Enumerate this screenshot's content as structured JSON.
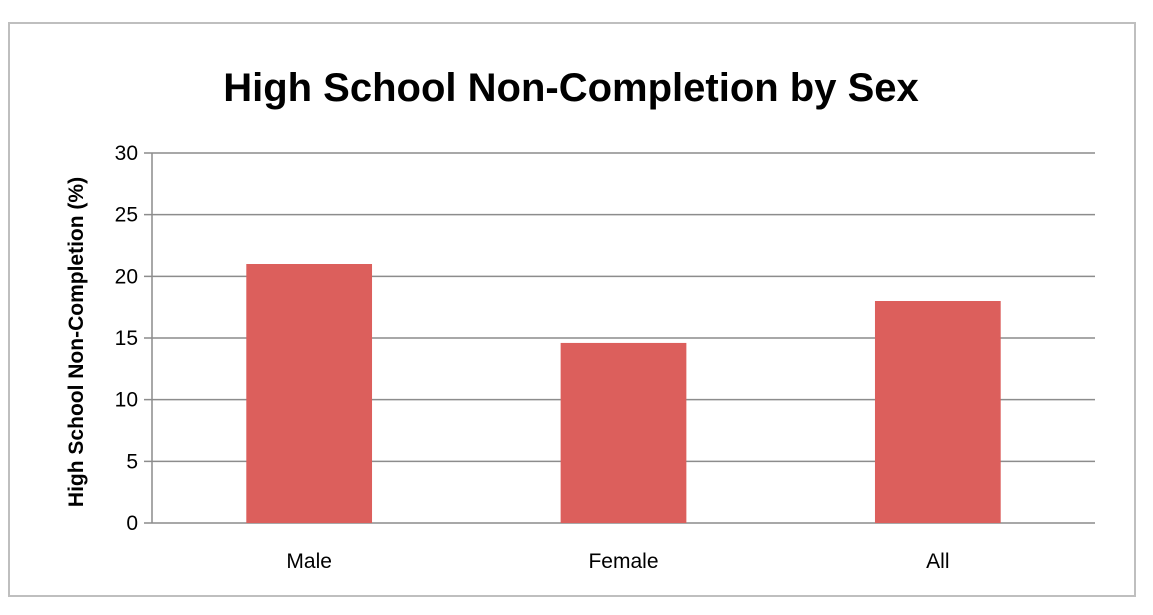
{
  "chart_data": {
    "type": "bar",
    "title": "High School Non-Completion by Sex",
    "xlabel": "",
    "ylabel": "High School Non-Completion (%)",
    "categories": [
      "Male",
      "Female",
      "All"
    ],
    "values": [
      21,
      14.6,
      18
    ],
    "ylim": [
      0,
      30
    ],
    "yticks": [
      0,
      5,
      10,
      15,
      20,
      25,
      30
    ],
    "grid": true,
    "legend": "none",
    "bar_color": "#dc5f5c",
    "grid_color": "#8c8c8c"
  }
}
